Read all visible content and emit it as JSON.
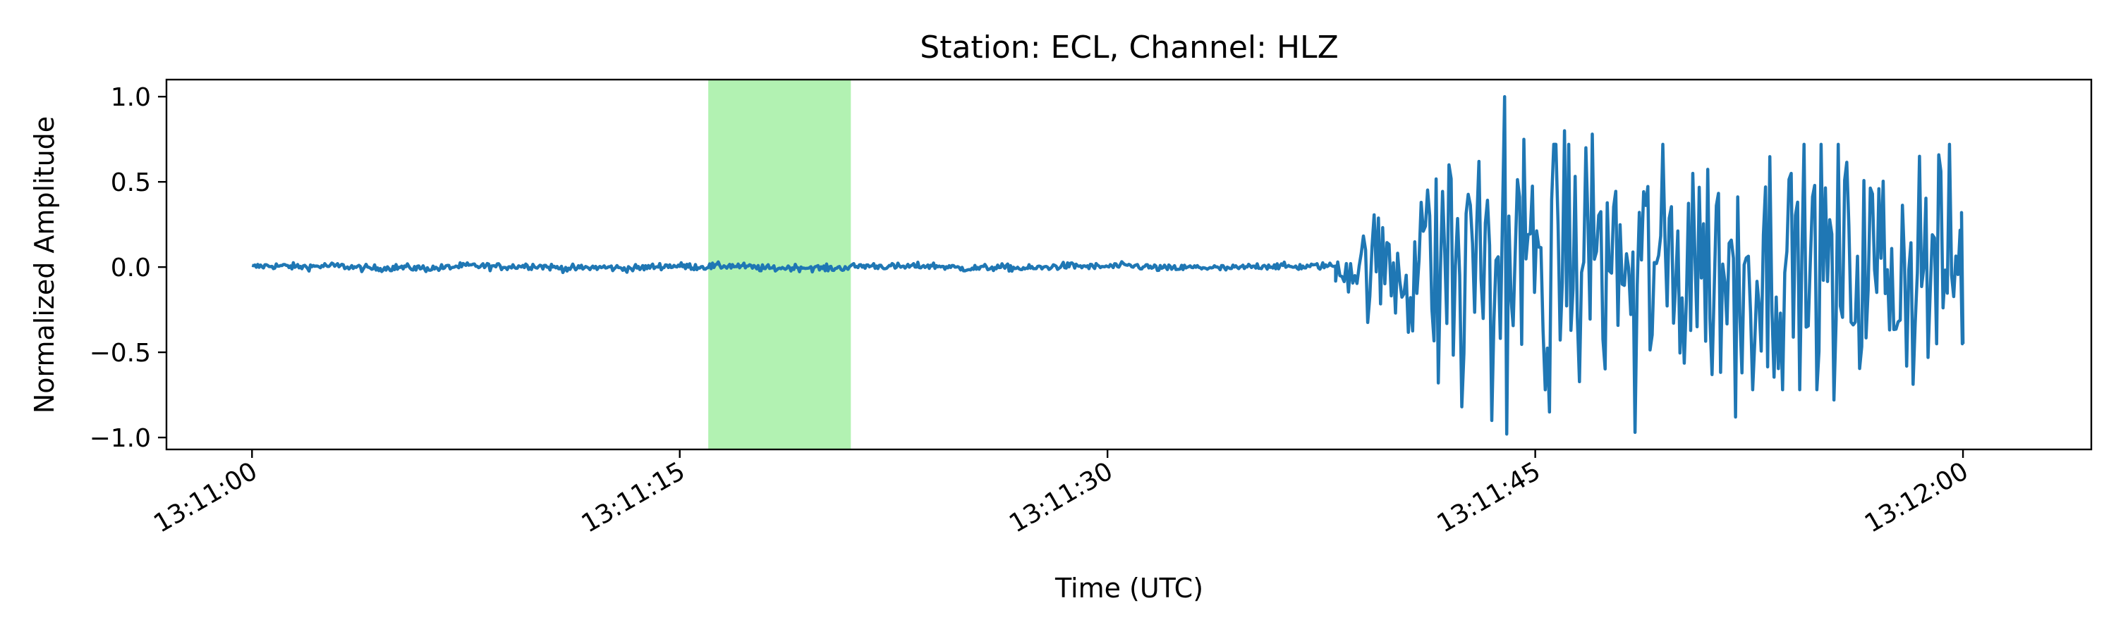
{
  "chart_data": {
    "type": "line",
    "title": "Station: ECL, Channel: HLZ",
    "xlabel": "Time (UTC)",
    "ylabel": "Normalized Amplitude",
    "x_range": [
      "13:11:00",
      "13:12:00"
    ],
    "xlim_seconds": [
      -3,
      64.5
    ],
    "ylim": [
      -1.07,
      1.1
    ],
    "x_ticks": [
      {
        "t": 0,
        "label": "13:11:00"
      },
      {
        "t": 15,
        "label": "13:11:15"
      },
      {
        "t": 30,
        "label": "13:11:30"
      },
      {
        "t": 45,
        "label": "13:11:45"
      },
      {
        "t": 60,
        "label": "13:12:00"
      }
    ],
    "y_ticks": [
      {
        "v": 1.0,
        "label": "1.0"
      },
      {
        "v": 0.5,
        "label": "0.5"
      },
      {
        "v": 0.0,
        "label": "0.0"
      },
      {
        "v": -0.5,
        "label": "−0.5"
      },
      {
        "v": -1.0,
        "label": "−1.0"
      }
    ],
    "highlight": {
      "from": "13:11:16",
      "to": "13:11:21",
      "color": "#b2f2b2"
    },
    "series": [
      {
        "color": "#1f77b4",
        "noise_phase": {
          "from": "13:11:00",
          "to": "13:11:38",
          "amplitude": 0.02
        },
        "signal_phase": {
          "from": "13:11:38",
          "to": "13:12:00",
          "peak_max": 1.0,
          "peak_min": -0.98,
          "end_value": -0.45
        },
        "peaks": [
          {
            "t": "13:11:41.0",
            "v": 0.38
          },
          {
            "t": "13:11:41.6",
            "v": -0.68
          },
          {
            "t": "13:11:42.0",
            "v": 0.6
          },
          {
            "t": "13:11:42.4",
            "v": -0.82
          },
          {
            "t": "13:11:43.0",
            "v": 0.62
          },
          {
            "t": "13:11:43.5",
            "v": -0.9
          },
          {
            "t": "13:11:43.9",
            "v": 1.0
          },
          {
            "t": "13:11:44.0",
            "v": -0.98
          },
          {
            "t": "13:11:44.6",
            "v": 0.75
          },
          {
            "t": "13:11:45.5",
            "v": -0.85
          },
          {
            "t": "13:11:46.0",
            "v": 0.8
          },
          {
            "t": "13:11:47.0",
            "v": 0.78
          },
          {
            "t": "13:11:48.5",
            "v": -0.97
          },
          {
            "t": "13:11:50.5",
            "v": 0.55
          },
          {
            "t": "13:11:52.0",
            "v": -0.88
          },
          {
            "t": "13:11:54.0",
            "v": 0.55
          },
          {
            "t": "13:11:55.5",
            "v": -0.78
          },
          {
            "t": "13:11:58.5",
            "v": 0.65
          },
          {
            "t": "13:12:00.0",
            "v": -0.45
          }
        ]
      }
    ]
  }
}
